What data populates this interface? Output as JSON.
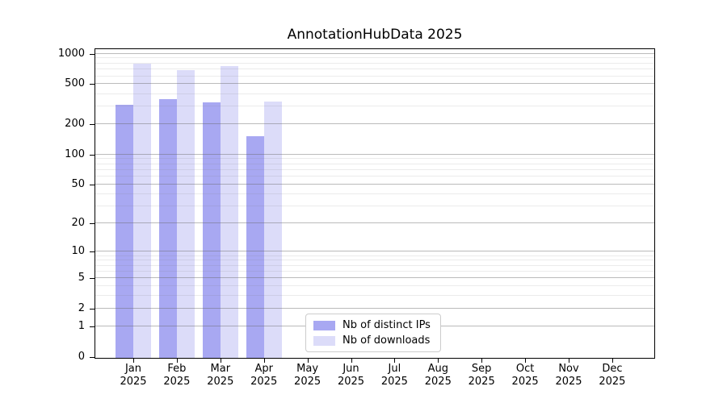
{
  "title": "AnnotationHubData 2025",
  "chart_data": {
    "type": "bar",
    "title": "AnnotationHubData 2025",
    "xlabel": "",
    "ylabel": "",
    "y_scale": "log10(value+1)",
    "ylim": [
      0,
      1100
    ],
    "grid": "on",
    "legend_position": "bottom-center-inside",
    "categories": [
      "Jan",
      "Feb",
      "Mar",
      "Apr",
      "May",
      "Jun",
      "Jul",
      "Aug",
      "Sep",
      "Oct",
      "Nov",
      "Dec"
    ],
    "category_year": "2025",
    "y_ticks": [
      0,
      1,
      2,
      5,
      10,
      20,
      50,
      100,
      200,
      500,
      1000
    ],
    "y_minor_gridlines": [
      3,
      4,
      6,
      7,
      8,
      9,
      30,
      40,
      60,
      70,
      80,
      90,
      300,
      400,
      600,
      700,
      800,
      900
    ],
    "series": [
      {
        "name": "Nb of distinct IPs",
        "color": "#a8a8f2",
        "values": [
          318,
          360,
          337,
          155,
          0,
          0,
          0,
          0,
          0,
          0,
          0,
          0
        ]
      },
      {
        "name": "Nb of downloads",
        "color": "#dcdcf9",
        "values": [
          815,
          707,
          775,
          343,
          0,
          0,
          0,
          0,
          0,
          0,
          0,
          0
        ]
      }
    ]
  },
  "colors": {
    "background": "#ffffff",
    "spine": "#000000",
    "major_grid": "#b0b0b0",
    "minor_grid": "#e6e6e6",
    "legend_border": "#cccccc"
  }
}
